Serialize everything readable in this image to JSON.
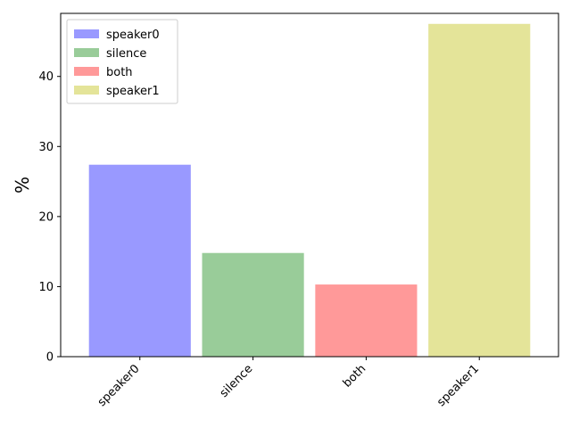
{
  "chart_data": {
    "type": "bar",
    "title": "",
    "xlabel": "",
    "ylabel": "%",
    "categories": [
      "speaker0",
      "silence",
      "both",
      "speaker1"
    ],
    "values": [
      27.4,
      14.8,
      10.3,
      47.5
    ],
    "colors": [
      "#9999ff",
      "#99cc99",
      "#ff9999",
      "#e4e499"
    ],
    "ylim": [
      0,
      49
    ],
    "yticks": [
      0,
      10,
      20,
      30,
      40
    ],
    "xtick_rotation": -45,
    "grid": false,
    "legend": {
      "placement": "top-left",
      "entries": [
        "speaker0",
        "silence",
        "both",
        "speaker1"
      ]
    }
  }
}
